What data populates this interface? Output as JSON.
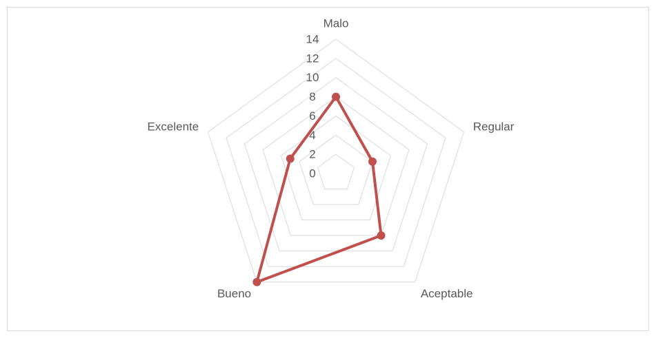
{
  "chart_data": {
    "type": "radar",
    "categories": [
      "Malo",
      "Regular",
      "Aceptable",
      "Bueno",
      "Excelente"
    ],
    "values": [
      8,
      4,
      8,
      14,
      5
    ],
    "color": "#c0504d",
    "rlim": [
      0,
      14
    ],
    "rticks": [
      0,
      2,
      4,
      6,
      8,
      10,
      12,
      14
    ],
    "grid": true
  }
}
